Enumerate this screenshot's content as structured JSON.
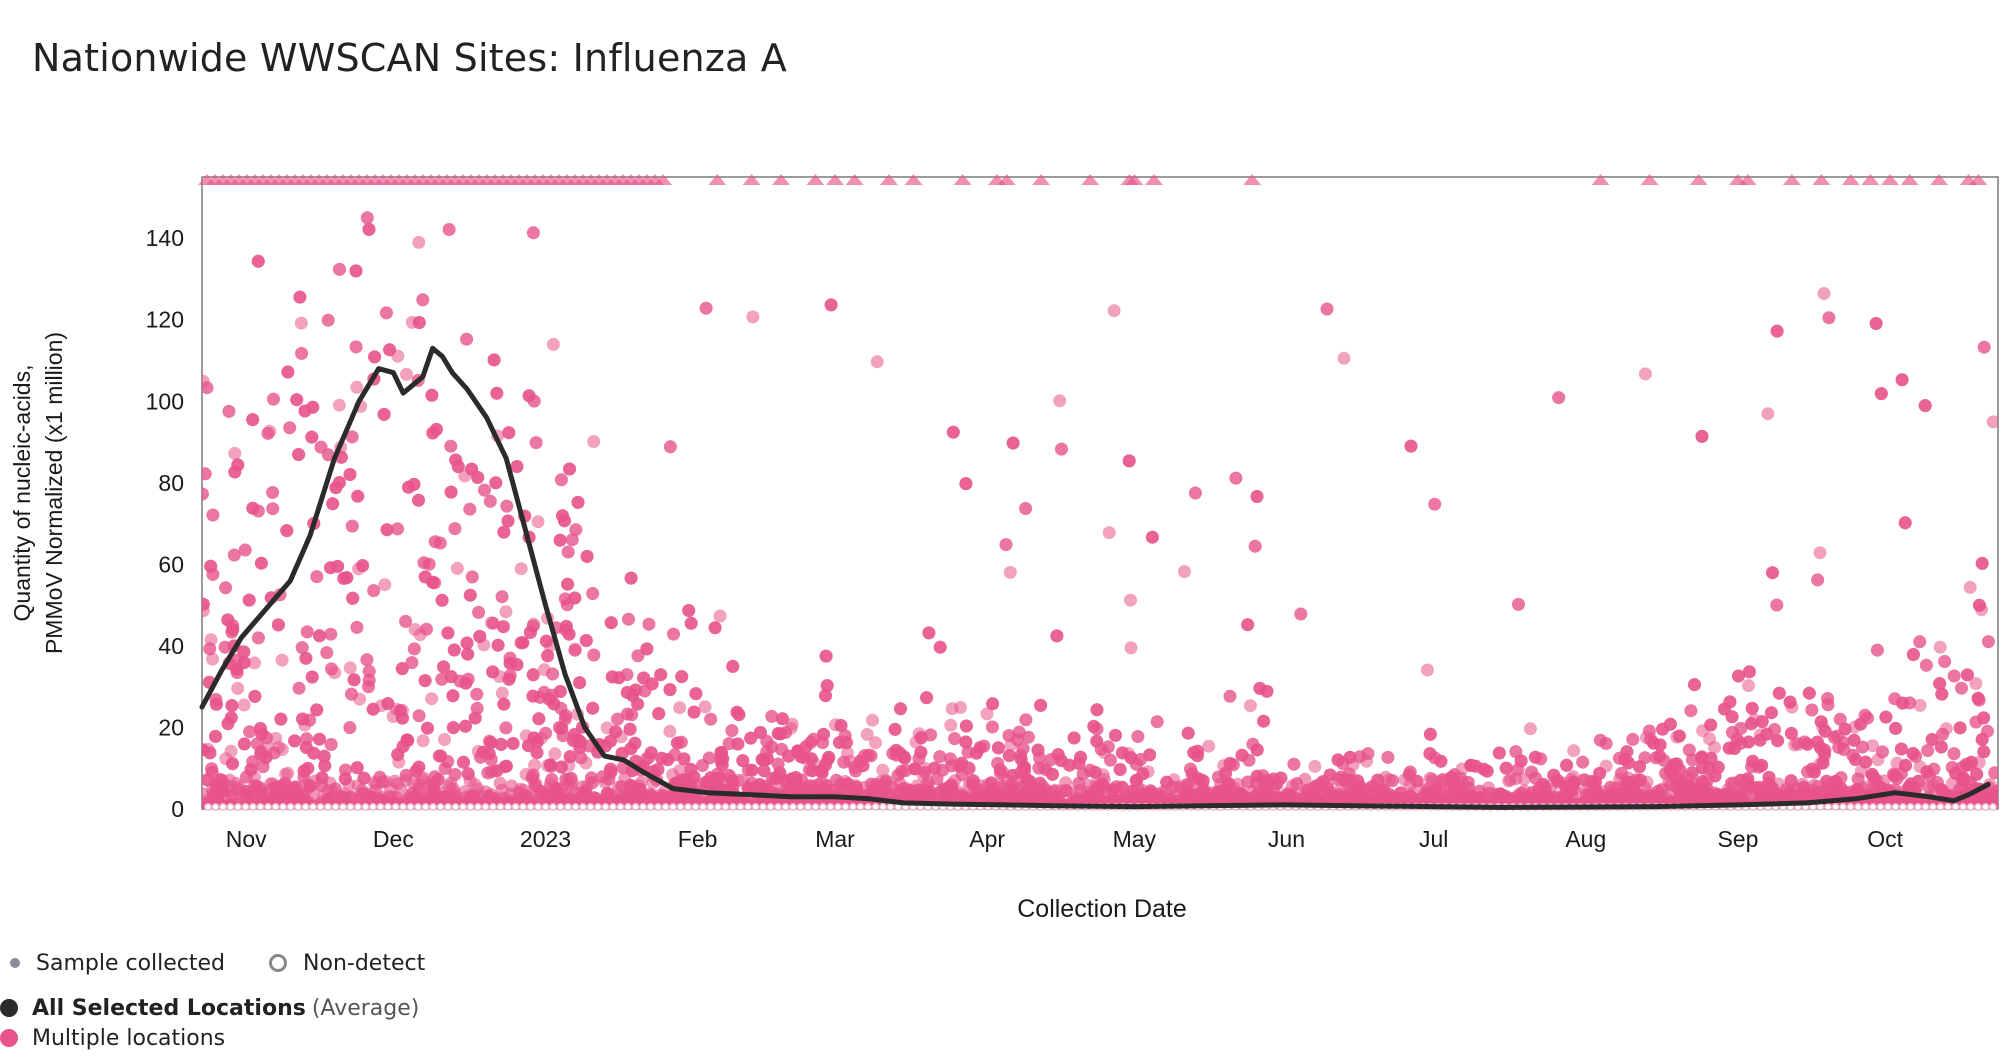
{
  "title": "Nationwide WWSCAN Sites: Influenza A",
  "colors": {
    "scatter": "#e8548a",
    "line": "#2b2b2b",
    "sample_dot": "#8a8a9a",
    "nondetect_ring": "#8c8c8c"
  },
  "chart_data": {
    "type": "scatter",
    "title": "Nationwide WWSCAN Sites: Influenza A",
    "xlabel": "Collection Date",
    "ylabel_lines": [
      "Quantity of nucleic-acids,",
      "PMMoV Normalized (x1 million)"
    ],
    "x_range": [
      "2022-10-23",
      "2023-10-24"
    ],
    "ylim": [
      0,
      155
    ],
    "y_ticks": [
      0,
      20,
      40,
      60,
      80,
      100,
      120,
      140
    ],
    "x_ticks": [
      {
        "date": "2022-11-01",
        "label": "Nov"
      },
      {
        "date": "2022-12-01",
        "label": "Dec"
      },
      {
        "date": "2023-01-01",
        "label": "2023"
      },
      {
        "date": "2023-02-01",
        "label": "Feb"
      },
      {
        "date": "2023-03-01",
        "label": "Mar"
      },
      {
        "date": "2023-04-01",
        "label": "Apr"
      },
      {
        "date": "2023-05-01",
        "label": "May"
      },
      {
        "date": "2023-06-01",
        "label": "Jun"
      },
      {
        "date": "2023-07-01",
        "label": "Jul"
      },
      {
        "date": "2023-08-01",
        "label": "Aug"
      },
      {
        "date": "2023-09-01",
        "label": "Sep"
      },
      {
        "date": "2023-10-01",
        "label": "Oct"
      }
    ],
    "grid": false,
    "series": [
      {
        "name": "All Selected Locations",
        "type": "line",
        "x": [
          "2022-10-23",
          "2022-10-27",
          "2022-10-31",
          "2022-11-05",
          "2022-11-10",
          "2022-11-14",
          "2022-11-19",
          "2022-11-24",
          "2022-11-28",
          "2022-12-01",
          "2022-12-03",
          "2022-12-05",
          "2022-12-07",
          "2022-12-09",
          "2022-12-11",
          "2022-12-13",
          "2022-12-16",
          "2022-12-20",
          "2022-12-24",
          "2022-12-28",
          "2023-01-01",
          "2023-01-05",
          "2023-01-09",
          "2023-01-13",
          "2023-01-17",
          "2023-01-21",
          "2023-01-27",
          "2023-02-03",
          "2023-02-12",
          "2023-02-20",
          "2023-03-01",
          "2023-03-08",
          "2023-03-15",
          "2023-03-25",
          "2023-04-05",
          "2023-04-15",
          "2023-05-01",
          "2023-05-15",
          "2023-06-01",
          "2023-06-15",
          "2023-07-01",
          "2023-07-15",
          "2023-08-01",
          "2023-08-15",
          "2023-09-01",
          "2023-09-15",
          "2023-09-25",
          "2023-10-03",
          "2023-10-10",
          "2023-10-15",
          "2023-10-18",
          "2023-10-22"
        ],
        "y": [
          25,
          34,
          42,
          49,
          56,
          67,
          86,
          100,
          108,
          107,
          102,
          104,
          106,
          113,
          111,
          107,
          103,
          96,
          86,
          68,
          50,
          33,
          20,
          13,
          12,
          9,
          5,
          4,
          3.5,
          3,
          3,
          2.5,
          1.5,
          1.2,
          1.0,
          0.8,
          0.6,
          0.8,
          1.0,
          0.8,
          0.6,
          0.4,
          0.5,
          0.6,
          1.0,
          1.5,
          2.5,
          4,
          3,
          2,
          3.5,
          6
        ]
      },
      {
        "name": "Multiple locations",
        "type": "scatter",
        "note_density": [
          {
            "x": "2022-10-23",
            "mean": 30,
            "spread": 50
          },
          {
            "x": "2022-11-15",
            "mean": 55,
            "spread": 65
          },
          {
            "x": "2022-12-10",
            "mean": 70,
            "spread": 70
          },
          {
            "x": "2023-01-01",
            "mean": 40,
            "spread": 55
          },
          {
            "x": "2023-01-20",
            "mean": 15,
            "spread": 30
          },
          {
            "x": "2023-02-15",
            "mean": 8,
            "spread": 18
          },
          {
            "x": "2023-04-01",
            "mean": 5,
            "spread": 14
          },
          {
            "x": "2023-06-01",
            "mean": 3,
            "spread": 10
          },
          {
            "x": "2023-08-01",
            "mean": 3,
            "spread": 10
          },
          {
            "x": "2023-09-15",
            "mean": 8,
            "spread": 20
          },
          {
            "x": "2023-10-20",
            "mean": 12,
            "spread": 30
          }
        ]
      }
    ],
    "legend": {
      "placement": "bottom-left",
      "items": [
        {
          "label": "Sample collected",
          "marker": "small-dot"
        },
        {
          "label": "Non-detect",
          "marker": "ring"
        },
        {
          "label": "All Selected Locations",
          "suffix": "(Average)",
          "marker": "big-dot-dark"
        },
        {
          "label": "Multiple locations",
          "marker": "big-dot-pink"
        }
      ]
    }
  }
}
